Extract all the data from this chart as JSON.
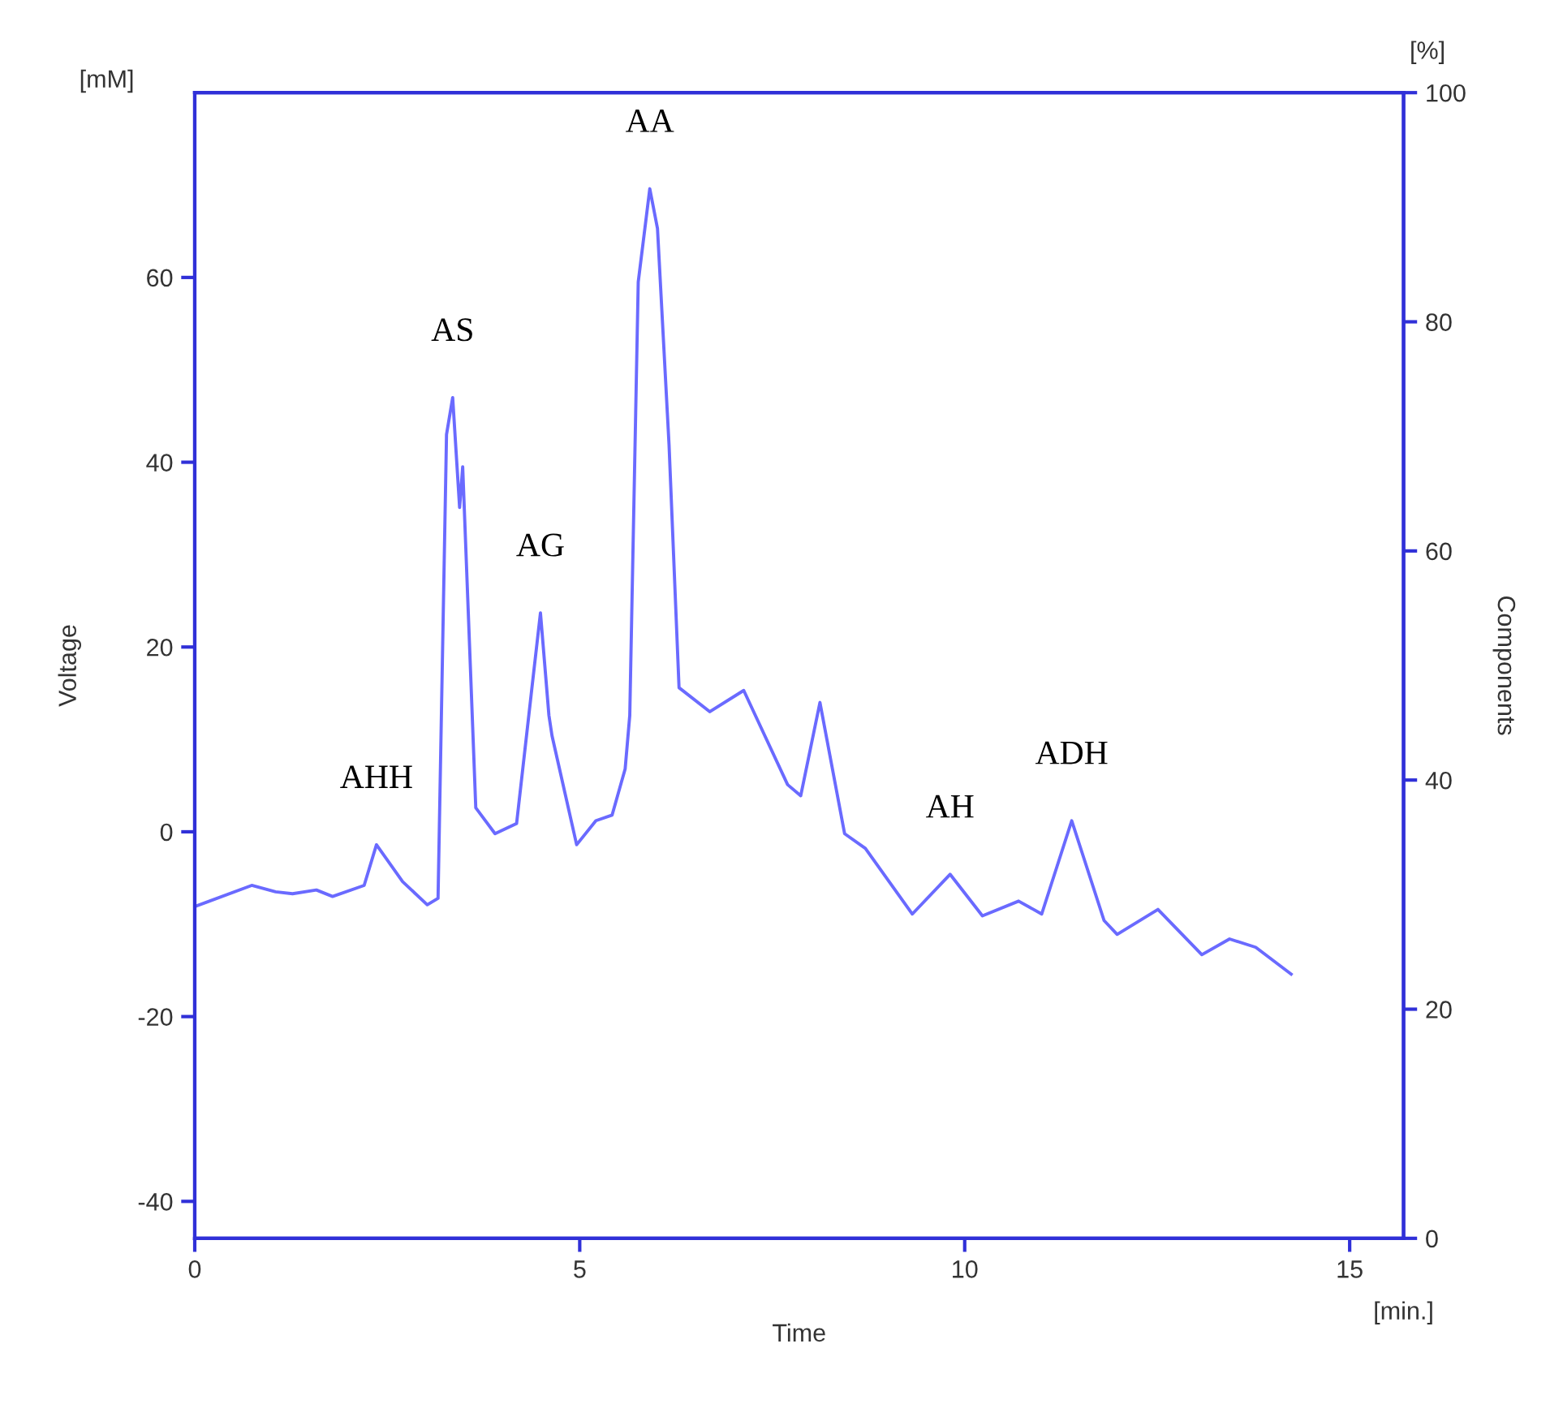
{
  "chart_data": {
    "type": "line",
    "xlabel": "Time",
    "ylabel": "Voltage",
    "y2label": "Components",
    "x": [
      0,
      0.74,
      1.05,
      1.27,
      1.58,
      1.79,
      2.2,
      2.36,
      2.7,
      3.02,
      3.16,
      3.27,
      3.35,
      3.44,
      3.48,
      3.65,
      3.9,
      4.18,
      4.37,
      4.49,
      4.6,
      4.64,
      4.96,
      5.21,
      5.42,
      5.59,
      5.65,
      5.76,
      5.91,
      6.01,
      6.16,
      6.29,
      6.69,
      7.13,
      7.7,
      7.87,
      8.12,
      8.44,
      8.71,
      9.32,
      9.81,
      10.23,
      10.7,
      11.0,
      11.39,
      11.81,
      11.98,
      12.51,
      13.08,
      13.44,
      13.78,
      14.24
    ],
    "series": [
      {
        "color": "#6a6aff",
        "values": [
          -8.1,
          -5.8,
          -6.5,
          -6.7,
          -6.3,
          -7.0,
          -5.8,
          -1.4,
          -5.4,
          -7.9,
          -7.2,
          43,
          47.0,
          35.1,
          39.5,
          2.6,
          -0.2,
          0.9,
          14.9,
          23.7,
          12.6,
          10.4,
          -1.4,
          1.2,
          1.8,
          6.8,
          12.6,
          59.5,
          69.6,
          65.3,
          41.9,
          15.6,
          13.0,
          15.3,
          5.1,
          3.9,
          14.0,
          -0.2,
          -1.8,
          -8.9,
          -4.6,
          -9.1,
          -7.5,
          -8.9,
          1.2,
          -9.6,
          -11.1,
          -8.4,
          -13.3,
          -11.6,
          -12.5,
          -15.4
        ]
      }
    ],
    "xlim": [
      0,
      15.7
    ],
    "xticks": [
      0,
      5,
      10,
      15
    ],
    "ylim": [
      -44,
      80
    ],
    "yticks": [
      -40,
      -20,
      0,
      20,
      40,
      60
    ],
    "y2lim": [
      0,
      100
    ],
    "y2ticks": [
      0,
      20,
      40,
      60,
      80,
      100
    ],
    "grid": false,
    "legend": false,
    "marker": "none",
    "line_style": "solid",
    "annotations": [
      {
        "text": "AHH",
        "x": 2.36,
        "y": -1.4
      },
      {
        "text": "AS",
        "x": 3.35,
        "y": 47.0
      },
      {
        "text": "AG",
        "x": 4.49,
        "y": 23.7
      },
      {
        "text": "AA",
        "x": 5.91,
        "y": 69.6
      },
      {
        "text": "AH",
        "x": 9.81,
        "y": -4.6
      },
      {
        "text": "ADH",
        "x": 11.39,
        "y": 1.2
      },
      "[mM]",
      "[%]",
      "[min.]"
    ]
  }
}
